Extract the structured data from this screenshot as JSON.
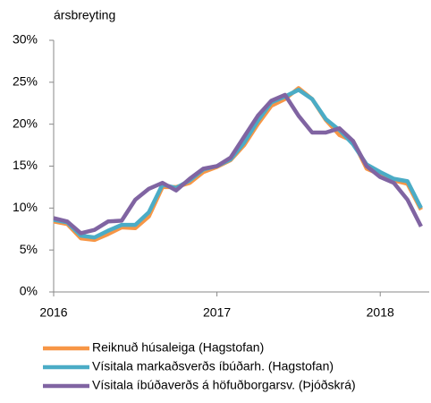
{
  "chart_data": {
    "type": "line",
    "y_label": "ársbreyting",
    "x": [
      2016,
      2016.0833,
      2016.1667,
      2016.25,
      2016.3333,
      2016.4167,
      2016.5,
      2016.5833,
      2016.6667,
      2016.75,
      2016.8333,
      2016.9167,
      2017,
      2017.0833,
      2017.1667,
      2017.25,
      2017.3333,
      2017.4167,
      2017.5,
      2017.5833,
      2017.6667,
      2017.75,
      2017.8333,
      2017.9167,
      2018,
      2018.0833,
      2018.1667,
      2018.25
    ],
    "series": [
      {
        "name": "Reiknuð húsaleiga (Hagstofan)",
        "color": "#f79646",
        "values": [
          8.4,
          8.1,
          6.4,
          6.2,
          6.9,
          7.7,
          7.6,
          9.0,
          12.5,
          12.5,
          13.0,
          14.3,
          14.9,
          15.7,
          17.5,
          20.0,
          22.2,
          23.0,
          24.3,
          23.0,
          20.5,
          18.7,
          18.0,
          14.7,
          14.0,
          13.3,
          12.9,
          9.8
        ]
      },
      {
        "name": "Vísitala markaðsverðs íbúðarh. (Hagstofan)",
        "color": "#4bacc6",
        "values": [
          8.6,
          8.3,
          6.7,
          6.5,
          7.3,
          8.0,
          8.0,
          9.5,
          12.8,
          12.4,
          13.3,
          14.6,
          15.0,
          15.8,
          17.8,
          20.4,
          22.6,
          23.3,
          24.1,
          23.0,
          20.6,
          19.3,
          17.6,
          15.2,
          14.3,
          13.5,
          13.2,
          10.0
        ]
      },
      {
        "name": "Vísitala íbúðaverðs á höfuðborgarsv. (Þjóðskrá)",
        "color": "#8064a2",
        "values": [
          8.8,
          8.4,
          7.0,
          7.4,
          8.4,
          8.5,
          11.0,
          12.3,
          13.0,
          12.1,
          13.5,
          14.7,
          15.0,
          16.0,
          18.5,
          21.0,
          22.8,
          23.5,
          21.0,
          19.0,
          19.0,
          19.5,
          18.0,
          15.0,
          13.7,
          13.0,
          11.0,
          7.8
        ]
      }
    ],
    "xlim": [
      2016,
      2018.3
    ],
    "xticks": [
      2016,
      2017,
      2018
    ],
    "ylim": [
      0,
      30
    ],
    "yticks": [
      {
        "value": 0,
        "label": "0%"
      },
      {
        "value": 5,
        "label": "5%"
      },
      {
        "value": 10,
        "label": "10%"
      },
      {
        "value": 15,
        "label": "15%"
      },
      {
        "value": 20,
        "label": "20%"
      },
      {
        "value": 25,
        "label": "25%"
      },
      {
        "value": 30,
        "label": "30%"
      }
    ],
    "grid": false,
    "legend": "bottom"
  }
}
